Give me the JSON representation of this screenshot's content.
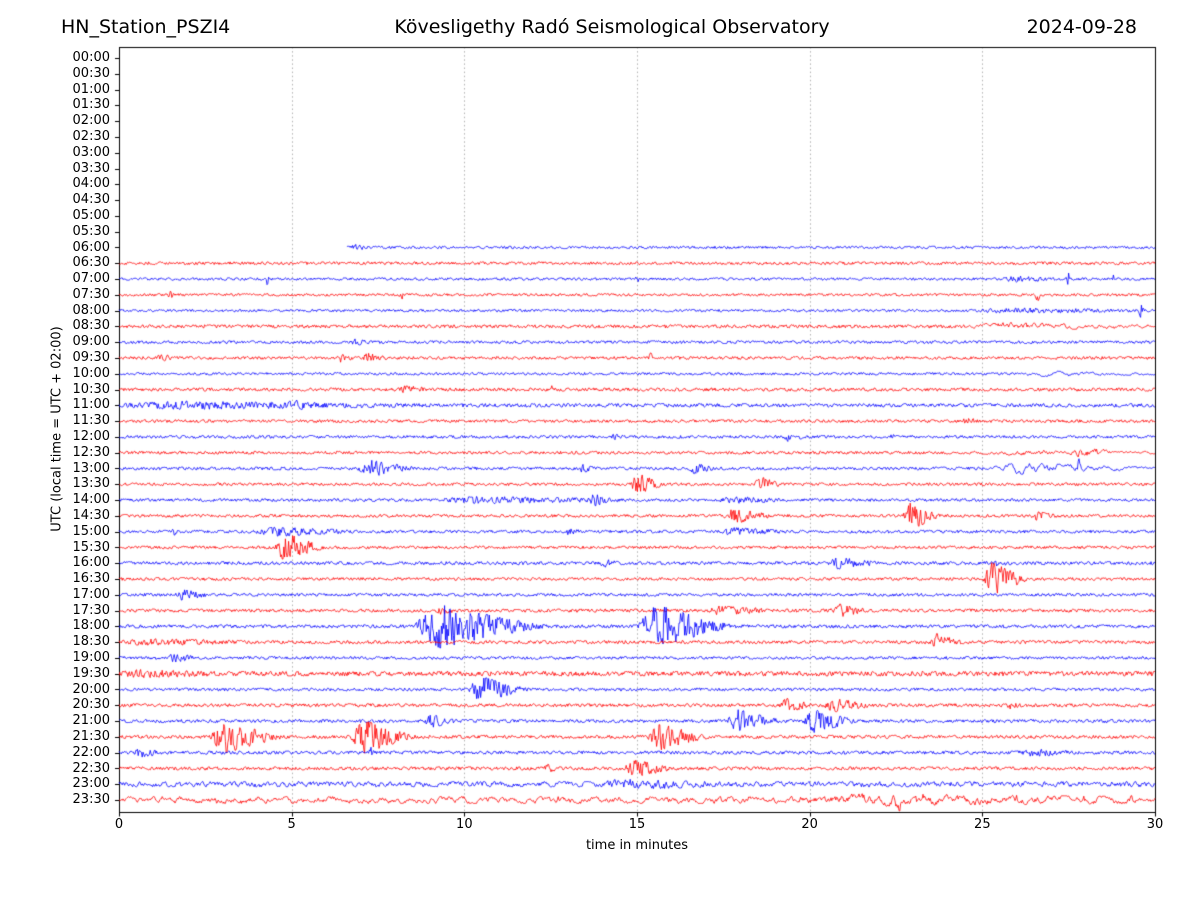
{
  "header": {
    "station": "HN_Station_PSZI4",
    "observatory": "Kövesligethy Radó Seismological Observatory",
    "date": "2024-09-28"
  },
  "chart_data": {
    "type": "line",
    "variant": "helicorder-seismogram-drum-plot",
    "title": "Kövesligethy Radó Seismological Observatory",
    "station": "HN_Station_PSZI4",
    "date": "2024-09-28",
    "xlabel": "time in minutes",
    "ylabel": "UTC (local time = UTC + 02:00)",
    "x_range": [
      0,
      30
    ],
    "x_ticks": [
      0,
      5,
      10,
      15,
      20,
      25,
      30
    ],
    "grid_minutes": [
      5,
      10,
      15,
      20,
      25
    ],
    "minutes_per_row": 30,
    "colors": {
      "trace_hour": "#0000ff",
      "trace_half_hour": "#ff0000",
      "grid": "#aaaaaa",
      "frame": "#000000"
    },
    "row_labels": [
      "00:00",
      "00:30",
      "01:00",
      "01:30",
      "02:00",
      "02:30",
      "03:00",
      "03:30",
      "04:00",
      "04:30",
      "05:00",
      "05:30",
      "06:00",
      "06:30",
      "07:00",
      "07:30",
      "08:00",
      "08:30",
      "09:00",
      "09:30",
      "10:00",
      "10:30",
      "11:00",
      "11:30",
      "12:00",
      "12:30",
      "13:00",
      "13:30",
      "14:00",
      "14:30",
      "15:00",
      "15:30",
      "16:00",
      "16:30",
      "17:00",
      "17:30",
      "18:00",
      "18:30",
      "19:00",
      "19:30",
      "20:00",
      "20:30",
      "21:00",
      "21:30",
      "22:00",
      "22:30",
      "23:00",
      "23:30"
    ],
    "first_trace_row": "06:00",
    "first_trace_start_minute": 6.6,
    "traces": [
      {
        "label": "06:00",
        "color": "blue",
        "base": 0.7,
        "start": 6.6,
        "events": [
          {
            "t0": 6.7,
            "t1": 7.3,
            "amp": 1.2
          }
        ]
      },
      {
        "label": "06:30",
        "color": "red",
        "base": 0.8,
        "events": []
      },
      {
        "label": "07:00",
        "color": "blue",
        "base": 0.7,
        "events": [
          {
            "t": 4.3,
            "amp": 2.8
          },
          {
            "t": 15.0,
            "amp": 1.8
          },
          {
            "t0": 25.6,
            "t1": 27.2,
            "amp": 1.4
          },
          {
            "t": 27.5,
            "amp": 3.0
          },
          {
            "t": 28.8,
            "amp": 3.2
          }
        ]
      },
      {
        "label": "07:30",
        "color": "red",
        "base": 0.7,
        "events": [
          {
            "t": 1.5,
            "amp": 3.2
          },
          {
            "t": 8.2,
            "amp": 1.8
          },
          {
            "t": 26.6,
            "amp": 3.2
          }
        ]
      },
      {
        "label": "08:00",
        "color": "blue",
        "base": 0.7,
        "events": [
          {
            "t0": 24.8,
            "t1": 30,
            "amp": 1.0
          },
          {
            "t": 29.6,
            "amp": 3.8
          }
        ]
      },
      {
        "label": "08:30",
        "color": "red",
        "base": 0.9,
        "events": [
          {
            "t0": 24.6,
            "t1": 30,
            "amp": 1.6,
            "slow": true
          }
        ]
      },
      {
        "label": "09:00",
        "color": "blue",
        "base": 0.8,
        "events": [
          {
            "t0": 6.7,
            "t1": 7.3,
            "amp": 1.3
          }
        ]
      },
      {
        "label": "09:30",
        "color": "red",
        "base": 0.8,
        "events": [
          {
            "t0": 1.1,
            "t1": 1.6,
            "amp": 2.2
          },
          {
            "t0": 6.3,
            "t1": 6.8,
            "amp": 1.8
          },
          {
            "t0": 7.0,
            "t1": 7.8,
            "amp": 2.2
          },
          {
            "t": 15.4,
            "amp": 2.2
          }
        ]
      },
      {
        "label": "10:00",
        "color": "blue",
        "base": 0.7,
        "events": [
          {
            "t0": 26,
            "t1": 30,
            "amp": 0.9,
            "slow": true
          }
        ]
      },
      {
        "label": "10:30",
        "color": "red",
        "base": 0.9,
        "events": [
          {
            "t0": 8.1,
            "t1": 9.1,
            "amp": 1.5
          },
          {
            "t": 12.5,
            "amp": 2.2
          }
        ]
      },
      {
        "label": "11:00",
        "color": "blue",
        "base": 1.0,
        "events": [
          {
            "t0": 0,
            "t1": 9,
            "amp": 1.5
          },
          {
            "t0": 4.9,
            "t1": 5.5,
            "amp": 2.0
          }
        ]
      },
      {
        "label": "11:30",
        "color": "red",
        "base": 0.8,
        "events": [
          {
            "t0": 24.4,
            "t1": 25.0,
            "amp": 1.3
          }
        ]
      },
      {
        "label": "12:00",
        "color": "blue",
        "base": 0.8,
        "events": [
          {
            "t0": 14.1,
            "t1": 14.6,
            "amp": 1.6
          },
          {
            "t0": 19.2,
            "t1": 19.9,
            "amp": 2.0
          },
          {
            "t": 22.4,
            "amp": 1.4
          }
        ]
      },
      {
        "label": "12:30",
        "color": "red",
        "base": 0.8,
        "events": [
          {
            "t0": 25,
            "t1": 30,
            "amp": 1.0,
            "slow": true
          },
          {
            "t0": 27.6,
            "t1": 28.9,
            "amp": 2.4
          }
        ]
      },
      {
        "label": "13:00",
        "color": "blue",
        "base": 0.8,
        "events": [
          {
            "t0": 6.9,
            "t1": 8.7,
            "amp": 4.2
          },
          {
            "t0": 13.3,
            "t1": 13.8,
            "amp": 1.8
          },
          {
            "t0": 16.5,
            "t1": 17.3,
            "amp": 2.4
          },
          {
            "t0": 25.1,
            "t1": 30,
            "amp": 2.6,
            "slow": true
          },
          {
            "t": 27.8,
            "amp": 7.0
          }
        ]
      },
      {
        "label": "13:30",
        "color": "red",
        "base": 0.8,
        "events": [
          {
            "t0": 14.8,
            "t1": 15.8,
            "amp": 6.0
          },
          {
            "t0": 18.4,
            "t1": 19.2,
            "amp": 4.2
          }
        ]
      },
      {
        "label": "14:00",
        "color": "blue",
        "base": 0.8,
        "events": [
          {
            "t0": 9.2,
            "t1": 15.3,
            "amp": 1.4
          },
          {
            "t0": 13.6,
            "t1": 14.3,
            "amp": 2.6
          },
          {
            "t0": 17.3,
            "t1": 19.5,
            "amp": 1.4
          }
        ]
      },
      {
        "label": "14:30",
        "color": "red",
        "base": 0.8,
        "events": [
          {
            "t0": 17.5,
            "t1": 19.0,
            "amp": 3.8
          },
          {
            "t0": 22.7,
            "t1": 23.8,
            "amp": 8.0
          },
          {
            "t0": 26.4,
            "t1": 27.2,
            "amp": 1.8
          }
        ]
      },
      {
        "label": "15:00",
        "color": "blue",
        "base": 0.8,
        "events": [
          {
            "t": 1.6,
            "amp": 3.2
          },
          {
            "t0": 3.9,
            "t1": 7.1,
            "amp": 2.0
          },
          {
            "t0": 12.9,
            "t1": 13.4,
            "amp": 1.6
          },
          {
            "t0": 17.4,
            "t1": 19.4,
            "amp": 1.6
          }
        ]
      },
      {
        "label": "15:30",
        "color": "red",
        "base": 0.8,
        "events": [
          {
            "t0": 4.5,
            "t1": 6.0,
            "amp": 8.0
          }
        ]
      },
      {
        "label": "16:00",
        "color": "blue",
        "base": 0.9,
        "events": [
          {
            "t0": 13.9,
            "t1": 14.5,
            "amp": 1.8
          },
          {
            "t0": 20.5,
            "t1": 22.1,
            "amp": 2.6
          },
          {
            "t0": 25.3,
            "t1": 25.8,
            "amp": 1.8
          }
        ]
      },
      {
        "label": "16:30",
        "color": "red",
        "base": 0.8,
        "events": [
          {
            "t0": 25.0,
            "t1": 26.4,
            "amp": 9.0
          }
        ]
      },
      {
        "label": "17:00",
        "color": "blue",
        "base": 0.8,
        "events": [
          {
            "t0": 1.6,
            "t1": 2.7,
            "amp": 2.5
          }
        ]
      },
      {
        "label": "17:30",
        "color": "red",
        "base": 0.9,
        "events": [
          {
            "t0": 9.2,
            "t1": 9.8,
            "amp": 1.8
          },
          {
            "t0": 16.9,
            "t1": 19.3,
            "amp": 1.8
          },
          {
            "t0": 20.6,
            "t1": 21.7,
            "amp": 3.2
          }
        ]
      },
      {
        "label": "18:00",
        "color": "blue",
        "base": 0.9,
        "events": [
          {
            "t0": 8.5,
            "t1": 12.4,
            "amp": 12.0
          },
          {
            "t0": 15.0,
            "t1": 17.8,
            "amp": 12.0
          }
        ]
      },
      {
        "label": "18:30",
        "color": "red",
        "base": 0.9,
        "events": [
          {
            "t0": 0,
            "t1": 4,
            "amp": 1.2
          },
          {
            "t0": 23.5,
            "t1": 24.4,
            "amp": 4.2
          }
        ]
      },
      {
        "label": "19:00",
        "color": "blue",
        "base": 0.8,
        "events": [
          {
            "t0": 1.4,
            "t1": 2.3,
            "amp": 2.2
          }
        ]
      },
      {
        "label": "19:30",
        "color": "red",
        "base": 1.3,
        "events": [
          {
            "t0": 0,
            "t1": 3,
            "amp": 1.2
          }
        ]
      },
      {
        "label": "20:00",
        "color": "blue",
        "base": 0.8,
        "events": [
          {
            "t0": 10.1,
            "t1": 11.9,
            "amp": 7.0
          }
        ]
      },
      {
        "label": "20:30",
        "color": "red",
        "base": 0.9,
        "events": [
          {
            "t0": 19.1,
            "t1": 20.2,
            "amp": 3.2
          },
          {
            "t0": 20.4,
            "t1": 21.9,
            "amp": 3.2
          },
          {
            "t0": 25.7,
            "t1": 26.2,
            "amp": 1.6
          }
        ]
      },
      {
        "label": "21:00",
        "color": "blue",
        "base": 0.9,
        "events": [
          {
            "t0": 8.8,
            "t1": 9.8,
            "amp": 3.2
          },
          {
            "t0": 17.6,
            "t1": 19.2,
            "amp": 6.0
          },
          {
            "t0": 19.8,
            "t1": 21.4,
            "amp": 6.0
          }
        ]
      },
      {
        "label": "21:30",
        "color": "red",
        "base": 0.9,
        "events": [
          {
            "t0": 2.6,
            "t1": 4.8,
            "amp": 9.0
          },
          {
            "t0": 6.7,
            "t1": 8.6,
            "amp": 9.0
          },
          {
            "t0": 15.3,
            "t1": 17.1,
            "amp": 7.0
          }
        ]
      },
      {
        "label": "22:00",
        "color": "blue",
        "base": 0.9,
        "events": [
          {
            "t0": 0.4,
            "t1": 1.3,
            "amp": 2.2
          },
          {
            "t": 7.3,
            "amp": 2.8
          },
          {
            "t0": 26.0,
            "t1": 28.0,
            "amp": 1.4
          }
        ]
      },
      {
        "label": "22:30",
        "color": "red",
        "base": 0.9,
        "events": [
          {
            "t0": 12.3,
            "t1": 12.8,
            "amp": 1.6
          },
          {
            "t0": 14.6,
            "t1": 16.2,
            "amp": 4.2
          }
        ]
      },
      {
        "label": "23:00",
        "color": "blue",
        "base": 1.5,
        "sm": 0.6,
        "events": [
          {
            "t0": 13.8,
            "t1": 17.7,
            "amp": 1.8
          }
        ]
      },
      {
        "label": "23:30",
        "color": "red",
        "base": 2.0,
        "sm": 0.8,
        "events": [
          {
            "t0": 19.4,
            "t1": 30,
            "amp": 1.8,
            "slow": true
          },
          {
            "t": 22.6,
            "amp": 3.0
          },
          {
            "t": 29.3,
            "amp": 3.0
          }
        ]
      }
    ]
  }
}
